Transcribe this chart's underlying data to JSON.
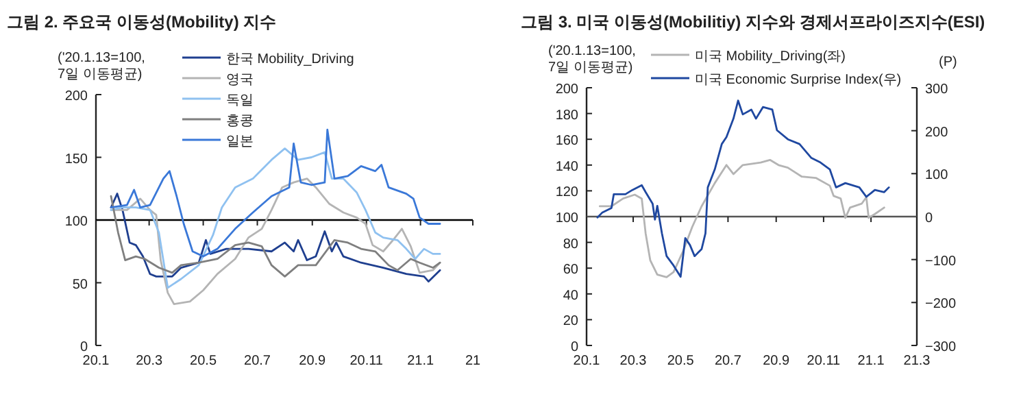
{
  "chart_data": [
    {
      "type": "line",
      "title": "그림 2. 주요국 이동성(Mobility) 지수",
      "ylabel": "('20.1.13=100,\n7일 이동평균)",
      "legend": "top",
      "xlim": [
        "2020-01",
        "2021-03"
      ],
      "ylim": [
        0,
        200
      ],
      "yticks": [
        0,
        50,
        100,
        150,
        200
      ],
      "xticks": [
        {
          "value": "2020-01",
          "label": "20.1"
        },
        {
          "value": "2020-03",
          "label": "20.3"
        },
        {
          "value": "2020-05",
          "label": "20.5"
        },
        {
          "value": "2020-07",
          "label": "20.7"
        },
        {
          "value": "2020-09",
          "label": "20.9"
        },
        {
          "value": "2020-11",
          "label": "20.11"
        },
        {
          "value": "2021-01",
          "label": "21.1"
        },
        {
          "value": "2021-03",
          "label": "21"
        }
      ],
      "ref_lines": [
        {
          "axis": "y",
          "value": 100,
          "color": "#000000"
        }
      ],
      "series": [
        {
          "name": "한국 Mobility_Driving",
          "color": "#1f3f8f",
          "x": [
            "2020-01-18",
            "2020-01-25",
            "2020-01-31",
            "2020-02-08",
            "2020-02-15",
            "2020-02-23",
            "2020-03-02",
            "2020-03-09",
            "2020-03-27",
            "2020-04-06",
            "2020-04-26",
            "2020-05-04",
            "2020-05-09",
            "2020-05-27",
            "2020-06-21",
            "2020-07-17",
            "2020-08-01",
            "2020-08-11",
            "2020-08-16",
            "2020-08-26",
            "2020-09-05",
            "2020-09-15",
            "2020-09-23",
            "2020-09-28",
            "2020-10-06",
            "2020-10-26",
            "2020-11-20",
            "2020-12-16",
            "2021-01-05",
            "2021-01-10",
            "2021-01-23"
          ],
          "values": [
            110,
            121,
            108,
            82,
            80,
            71,
            57,
            55,
            55,
            62,
            66,
            84,
            73,
            77,
            77,
            75,
            82,
            75,
            84,
            68,
            71,
            91,
            75,
            82,
            71,
            66,
            62,
            57,
            55,
            51,
            60
          ]
        },
        {
          "name": "영국",
          "color": "#b4b4b4",
          "x": [
            "2020-01-18",
            "2020-02-05",
            "2020-02-20",
            "2020-03-02",
            "2020-03-09",
            "2020-03-14",
            "2020-03-22",
            "2020-03-29",
            "2020-04-16",
            "2020-05-01",
            "2020-05-17",
            "2020-06-06",
            "2020-06-21",
            "2020-07-06",
            "2020-07-17",
            "2020-07-29",
            "2020-08-11",
            "2020-08-26",
            "2020-09-05",
            "2020-09-20",
            "2020-10-06",
            "2020-10-21",
            "2020-10-31",
            "2020-11-08",
            "2020-11-20",
            "2020-12-01",
            "2020-12-11",
            "2020-12-21",
            "2020-12-31",
            "2021-01-15",
            "2021-01-23"
          ],
          "values": [
            108,
            108,
            117,
            108,
            104,
            68,
            42,
            33,
            35,
            44,
            57,
            69,
            86,
            93,
            108,
            126,
            130,
            133,
            126,
            113,
            106,
            102,
            97,
            80,
            75,
            84,
            93,
            79,
            58,
            60,
            66
          ]
        },
        {
          "name": "독일",
          "color": "#8fc1f0",
          "x": [
            "2020-01-18",
            "2020-01-31",
            "2020-02-15",
            "2020-03-02",
            "2020-03-12",
            "2020-03-22",
            "2020-04-06",
            "2020-04-26",
            "2020-05-12",
            "2020-05-22",
            "2020-06-06",
            "2020-06-26",
            "2020-07-17",
            "2020-08-01",
            "2020-08-16",
            "2020-08-31",
            "2020-09-15",
            "2020-09-23",
            "2020-10-06",
            "2020-10-21",
            "2020-10-31",
            "2020-11-11",
            "2020-11-20",
            "2020-12-06",
            "2020-12-16",
            "2020-12-26",
            "2021-01-05",
            "2021-01-15",
            "2021-01-23"
          ],
          "values": [
            108,
            110,
            110,
            108,
            90,
            46,
            53,
            64,
            88,
            110,
            126,
            133,
            148,
            157,
            148,
            150,
            154,
            133,
            133,
            122,
            108,
            90,
            86,
            84,
            77,
            69,
            77,
            73,
            73
          ]
        },
        {
          "name": "홍콩",
          "color": "#7f7f7f",
          "x": [
            "2020-01-18",
            "2020-01-26",
            "2020-02-03",
            "2020-02-15",
            "2020-02-25",
            "2020-03-12",
            "2020-03-27",
            "2020-04-06",
            "2020-04-26",
            "2020-05-17",
            "2020-06-06",
            "2020-06-21",
            "2020-07-06",
            "2020-07-17",
            "2020-08-01",
            "2020-08-16",
            "2020-09-05",
            "2020-09-26",
            "2020-10-11",
            "2020-10-26",
            "2020-11-11",
            "2020-11-26",
            "2020-12-06",
            "2020-12-21",
            "2020-12-31",
            "2021-01-15",
            "2021-01-23"
          ],
          "values": [
            119,
            90,
            68,
            71,
            69,
            62,
            58,
            64,
            66,
            69,
            80,
            82,
            79,
            64,
            55,
            64,
            64,
            84,
            82,
            77,
            75,
            64,
            60,
            69,
            66,
            62,
            66
          ]
        },
        {
          "name": "일본",
          "color": "#3a78d8",
          "x": [
            "2020-01-18",
            "2020-02-05",
            "2020-02-13",
            "2020-02-20",
            "2020-03-02",
            "2020-03-17",
            "2020-03-24",
            "2020-04-01",
            "2020-04-09",
            "2020-04-19",
            "2020-05-01",
            "2020-05-17",
            "2020-06-06",
            "2020-06-26",
            "2020-07-17",
            "2020-08-06",
            "2020-08-11",
            "2020-08-19",
            "2020-08-31",
            "2020-09-15",
            "2020-09-18",
            "2020-09-26",
            "2020-10-11",
            "2020-10-26",
            "2020-11-11",
            "2020-11-18",
            "2020-11-26",
            "2020-12-16",
            "2020-12-24",
            "2020-12-31",
            "2021-01-10",
            "2021-01-23"
          ],
          "values": [
            110,
            112,
            124,
            110,
            112,
            133,
            139,
            119,
            97,
            75,
            71,
            77,
            93,
            106,
            119,
            126,
            161,
            130,
            128,
            130,
            172,
            133,
            135,
            143,
            139,
            144,
            126,
            121,
            117,
            102,
            97,
            97
          ]
        }
      ]
    },
    {
      "type": "line",
      "title": "그림 3. 미국 이동성(Mobilitiy) 지수와 경제서프라이즈지수(ESI)",
      "ylabel": "('20.1.13=100,\n7일 이동평균)",
      "y2label": "(P)",
      "legend": "top",
      "xlim": [
        "2020-01",
        "2021-03"
      ],
      "ylim": [
        0,
        200
      ],
      "yticks": [
        0,
        20,
        40,
        60,
        80,
        100,
        120,
        140,
        160,
        180,
        200
      ],
      "y2lim": [
        -300,
        300
      ],
      "y2ticks": [
        -300,
        -200,
        -100,
        0,
        100,
        200,
        300
      ],
      "xticks": [
        {
          "value": "2020-01",
          "label": "20.1"
        },
        {
          "value": "2020-03",
          "label": "20.3"
        },
        {
          "value": "2020-05",
          "label": "20.5"
        },
        {
          "value": "2020-07",
          "label": "20.7"
        },
        {
          "value": "2020-09",
          "label": "20.9"
        },
        {
          "value": "2020-11",
          "label": "20.11"
        },
        {
          "value": "2021-01",
          "label": "21.1"
        },
        {
          "value": "2021-03",
          "label": "21.3"
        }
      ],
      "ref_lines": [
        {
          "axis": "y",
          "value": 100,
          "color": "#555555"
        }
      ],
      "series": [
        {
          "name": "미국 Mobility_Driving(좌)",
          "color": "#b4b4b4",
          "x": [
            "2020-01-18",
            "2020-02-02",
            "2020-02-17",
            "2020-03-03",
            "2020-03-12",
            "2020-03-17",
            "2020-03-23",
            "2020-04-01",
            "2020-04-13",
            "2020-04-22",
            "2020-05-04",
            "2020-05-16",
            "2020-05-28",
            "2020-06-14",
            "2020-06-29",
            "2020-07-08",
            "2020-07-20",
            "2020-08-12",
            "2020-08-24",
            "2020-09-04",
            "2020-09-16",
            "2020-10-04",
            "2020-10-22",
            "2020-11-09",
            "2020-11-14",
            "2020-11-23",
            "2020-11-29",
            "2020-12-05",
            "2020-12-20",
            "2020-12-26",
            "2020-12-29",
            "2021-01-06",
            "2021-01-18"
          ],
          "values": [
            108,
            108,
            114,
            117,
            114,
            87,
            66,
            55,
            53,
            57,
            73,
            92,
            108,
            126,
            140,
            133,
            140,
            142,
            144,
            140,
            138,
            131,
            130,
            124,
            116,
            114,
            99,
            107,
            110,
            115,
            99,
            102,
            107
          ]
        },
        {
          "name": "미국 Economic Surprise Index(우)",
          "color": "#1f48a0",
          "axis": "y2",
          "x": [
            "2020-01-15",
            "2020-01-21",
            "2020-02-02",
            "2020-02-05",
            "2020-02-20",
            "2020-02-29",
            "2020-03-12",
            "2020-03-17",
            "2020-03-26",
            "2020-03-29",
            "2020-04-01",
            "2020-04-07",
            "2020-04-13",
            "2020-04-22",
            "2020-05-01",
            "2020-05-07",
            "2020-05-13",
            "2020-05-19",
            "2020-05-28",
            "2020-06-02",
            "2020-06-05",
            "2020-06-14",
            "2020-06-23",
            "2020-06-29",
            "2020-07-08",
            "2020-07-14",
            "2020-07-20",
            "2020-07-31",
            "2020-08-06",
            "2020-08-15",
            "2020-08-27",
            "2020-09-02",
            "2020-09-16",
            "2020-10-01",
            "2020-10-16",
            "2020-10-28",
            "2020-11-09",
            "2020-11-17",
            "2020-11-29",
            "2020-12-17",
            "2020-12-26",
            "2021-01-06",
            "2021-01-18",
            "2021-01-24"
          ],
          "values": [
            -2,
            9,
            20,
            52,
            52,
            62,
            73,
            57,
            30,
            -7,
            25,
            -39,
            -92,
            -114,
            -140,
            -50,
            -66,
            -92,
            -76,
            -39,
            68,
            110,
            169,
            185,
            228,
            270,
            238,
            249,
            228,
            255,
            249,
            201,
            180,
            169,
            137,
            126,
            110,
            68,
            78,
            68,
            46,
            62,
            57,
            68
          ]
        }
      ]
    }
  ]
}
